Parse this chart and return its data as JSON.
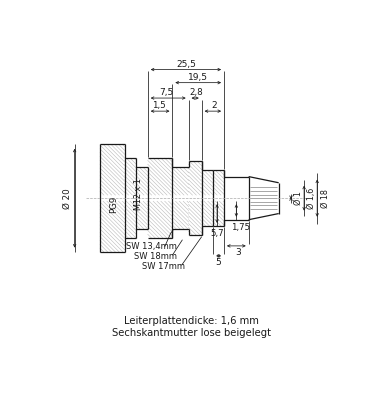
{
  "bg_color": "#ffffff",
  "line_color": "#1a1a1a",
  "text_color": "#1a1a1a",
  "hatch_color": "#bbbbbb",
  "footnote1": "Leiterplattendicke: 1,6 mm",
  "footnote2": "Sechskantmutter lose beigelegt",
  "dim_25_5": "25,5",
  "dim_19_5": "19,5",
  "dim_7_5": "7,5",
  "dim_2_8": "2,8",
  "dim_1_5": "1,5",
  "dim_2": "2",
  "dim_20": "Ø 20",
  "pg9": "PG9",
  "m12x1": "M12 x 1",
  "dim_d1": "Ø 1",
  "dim_d16": "Ø 1,6",
  "dim_d18": "Ø 18",
  "sw134": "SW 13,4mm",
  "sw18": "SW 18mm",
  "sw17": "SW 17mm",
  "dim_5": "5",
  "dim_3": "3",
  "dim_57": "5,7",
  "dim_175": "1,75"
}
